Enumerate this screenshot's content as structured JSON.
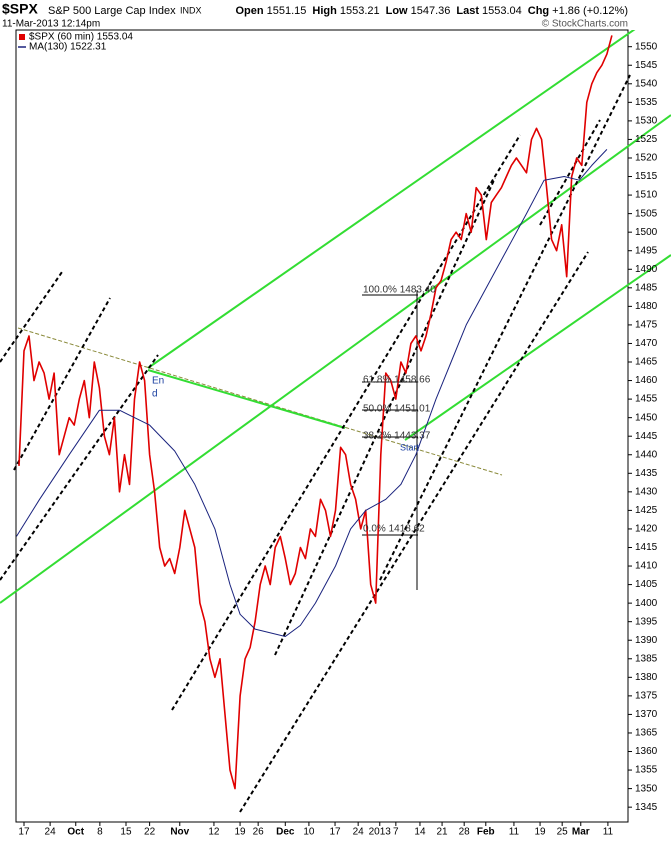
{
  "chart_data": {
    "type": "line",
    "title": "$SPX",
    "subtitle": "S&P 500 Large Cap Index",
    "exchange": "INDX",
    "date": "11-Mar-2013 12:14pm",
    "credit": "© StockCharts.com",
    "quote": [
      {
        "label": "Open",
        "value": "1551.15"
      },
      {
        "label": "High",
        "value": "1553.21"
      },
      {
        "label": "Low",
        "value": "1547.36"
      },
      {
        "label": "Last",
        "value": "1553.04"
      },
      {
        "label": "Chg",
        "value": "+1.86 (+0.12%)"
      }
    ],
    "annotations": [
      "100.0% 1483.40",
      "61.8% 1458.66",
      "50.0% 1451.01",
      "38.2% 1443.37",
      "0.0% 1418.62",
      "En",
      "d",
      "Start"
    ],
    "grid": false,
    "xlim": [
      -1.59,
      120.2
    ],
    "xticks": [
      {
        "value": 0,
        "label": "17"
      },
      {
        "value": 5.2,
        "label": "24"
      },
      {
        "value": 10.3,
        "label": "Oct"
      },
      {
        "value": 15.1,
        "label": "8"
      },
      {
        "value": 20.3,
        "label": "15"
      },
      {
        "value": 25,
        "label": "22"
      },
      {
        "value": 31,
        "label": "Nov"
      },
      {
        "value": 37.8,
        "label": "12"
      },
      {
        "value": 43,
        "label": "19"
      },
      {
        "value": 46.6,
        "label": "26"
      },
      {
        "value": 52,
        "label": "Dec"
      },
      {
        "value": 56.7,
        "label": "10"
      },
      {
        "value": 61.9,
        "label": "17"
      },
      {
        "value": 66.5,
        "label": "24"
      },
      {
        "value": 70.8,
        "label": "2013"
      },
      {
        "value": 74,
        "label": "7"
      },
      {
        "value": 78.8,
        "label": "14"
      },
      {
        "value": 83.2,
        "label": "21"
      },
      {
        "value": 87.6,
        "label": "28"
      },
      {
        "value": 91.9,
        "label": "Feb"
      },
      {
        "value": 97.5,
        "label": "11"
      },
      {
        "value": 102.7,
        "label": "19"
      },
      {
        "value": 107.1,
        "label": "25"
      },
      {
        "value": 110.8,
        "label": "Mar"
      },
      {
        "value": 116.2,
        "label": "11"
      }
    ],
    "ylim": [
      1341,
      1554.5
    ],
    "yticks": [
      1345,
      1350,
      1355,
      1360,
      1365,
      1370,
      1375,
      1380,
      1385,
      1390,
      1395,
      1400,
      1405,
      1410,
      1415,
      1420,
      1425,
      1430,
      1435,
      1440,
      1445,
      1450,
      1455,
      1460,
      1465,
      1470,
      1475,
      1480,
      1485,
      1490,
      1495,
      1500,
      1505,
      1510,
      1515,
      1520,
      1525,
      1530,
      1535,
      1540,
      1545,
      1550
    ],
    "series": [
      {
        "name": "$SPX (60 min) 1553.04",
        "color": "#e00000",
        "x": [
          -1,
          0,
          1,
          2,
          3,
          4,
          5,
          6,
          7,
          8,
          9,
          10,
          11,
          12,
          13,
          14,
          15,
          16,
          17,
          18,
          19,
          20,
          21,
          22,
          23,
          24,
          25,
          26,
          27,
          28,
          29,
          30,
          31,
          32,
          33,
          34,
          35,
          36,
          37,
          38,
          39,
          40,
          41,
          42,
          43,
          44,
          45,
          46,
          47,
          48,
          49,
          50,
          51,
          52,
          53,
          54,
          55,
          56,
          57,
          58,
          59,
          60,
          61,
          62,
          63,
          64,
          65,
          66,
          67,
          68,
          69,
          70,
          71,
          72,
          73,
          74,
          75,
          76,
          77,
          78,
          79,
          80,
          81,
          82,
          83,
          84,
          85,
          86,
          87,
          88,
          89,
          90,
          91,
          92,
          93,
          94,
          95,
          96,
          97,
          98,
          99,
          100,
          101,
          102,
          103,
          104,
          105,
          106,
          107,
          108,
          109,
          110,
          111,
          112,
          113,
          114,
          115,
          116,
          117
        ],
        "values": [
          1437,
          1468,
          1472,
          1460,
          1465,
          1462,
          1455,
          1462,
          1440,
          1445,
          1450,
          1448,
          1455,
          1460,
          1450,
          1465,
          1458,
          1445,
          1440,
          1450,
          1430,
          1440,
          1432,
          1455,
          1465,
          1460,
          1440,
          1430,
          1415,
          1410,
          1412,
          1408,
          1415,
          1425,
          1420,
          1415,
          1400,
          1395,
          1385,
          1380,
          1385,
          1370,
          1355,
          1350,
          1375,
          1385,
          1388,
          1395,
          1405,
          1410,
          1405,
          1415,
          1418,
          1412,
          1405,
          1408,
          1415,
          1412,
          1420,
          1418,
          1428,
          1425,
          1418,
          1425,
          1442,
          1440,
          1432,
          1428,
          1420,
          1425,
          1405,
          1400,
          1440,
          1462,
          1460,
          1455,
          1465,
          1462,
          1470,
          1472,
          1468,
          1472,
          1478,
          1485,
          1487,
          1492,
          1498,
          1500,
          1498,
          1505,
          1500,
          1512,
          1510,
          1498,
          1508,
          1510,
          1512,
          1515,
          1518,
          1520,
          1518,
          1516,
          1525,
          1528,
          1525,
          1512,
          1498,
          1495,
          1502,
          1488,
          1515,
          1520,
          1518,
          1535,
          1540,
          1543,
          1545,
          1548,
          1553.04
        ]
      },
      {
        "name": "MA(130) 1522.31",
        "color": "#1a237e",
        "x": [
          -1.5,
          3.1,
          9,
          15,
          19,
          25,
          30,
          34,
          38,
          41,
          43,
          46,
          52,
          55,
          58,
          62,
          65,
          68,
          72,
          75,
          78,
          82,
          85,
          88,
          92,
          96,
          100,
          103.5,
          107.5,
          110.5,
          113,
          116
        ],
        "values": [
          1418,
          1428,
          1440,
          1452,
          1452,
          1448,
          1441,
          1432,
          1420,
          1405,
          1397,
          1393,
          1391,
          1394,
          1400,
          1410,
          1420,
          1425,
          1428,
          1432,
          1440,
          1455,
          1465,
          1475,
          1485,
          1495,
          1505,
          1514,
          1515,
          1514,
          1518,
          1522.31
        ]
      }
    ]
  }
}
